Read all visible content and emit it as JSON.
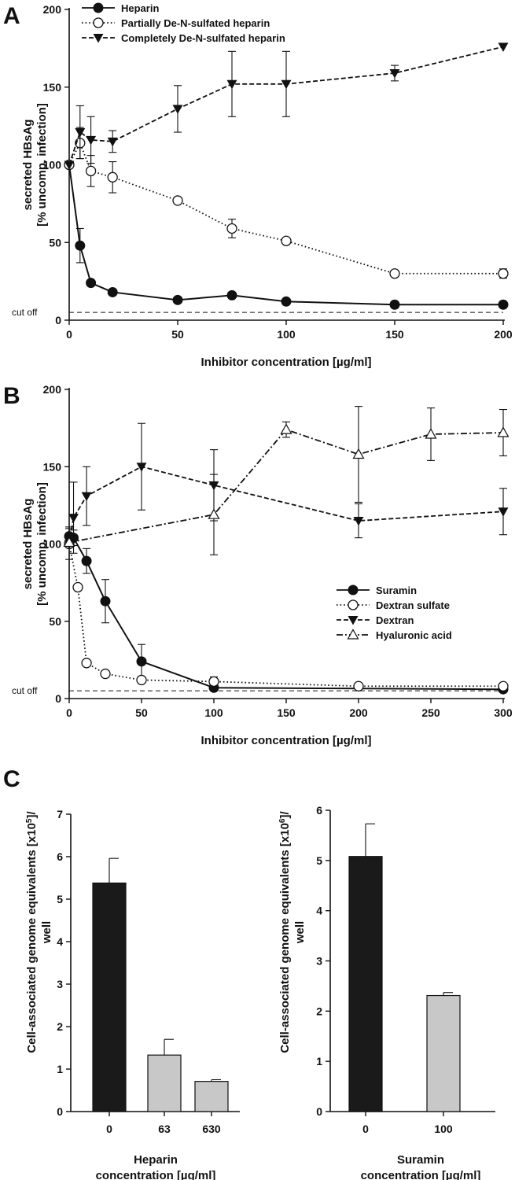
{
  "panels": [
    {
      "letter": "A"
    },
    {
      "letter": "B"
    },
    {
      "letter": "C"
    }
  ],
  "chart_data": [
    {
      "panel": "A",
      "type": "line",
      "xlabel": "Inhibitor concentration [µg/ml]",
      "ylabel": [
        "secreted HBsAg",
        "[% uncomp. infection]"
      ],
      "xlim": [
        0,
        200
      ],
      "ylim": [
        0,
        200
      ],
      "xticks": [
        0,
        50,
        100,
        150,
        200
      ],
      "yticks": [
        0,
        50,
        100,
        150,
        200
      ],
      "cutoff": {
        "label": "cut off",
        "value": 5
      },
      "legend_position": "top-left",
      "series": [
        {
          "name": "Heparin",
          "marker": "filled-circle",
          "line": "solid",
          "x": [
            0,
            5,
            10,
            20,
            50,
            75,
            100,
            150,
            200
          ],
          "y": [
            100,
            48,
            24,
            18,
            13,
            16,
            12,
            10,
            10
          ],
          "err": [
            0,
            11,
            0,
            0,
            0,
            0,
            0,
            0,
            0
          ]
        },
        {
          "name": "Partially De-N-sulfated heparin",
          "marker": "open-circle",
          "line": "dotted",
          "x": [
            0,
            5,
            10,
            20,
            50,
            75,
            100,
            150,
            200
          ],
          "y": [
            100,
            114,
            96,
            92,
            77,
            59,
            51,
            30,
            30
          ],
          "err": [
            0,
            10,
            10,
            10,
            0,
            6,
            0,
            0,
            3
          ]
        },
        {
          "name": "Completely De-N-sulfated heparin",
          "marker": "filled-triangle-down",
          "line": "dashed",
          "x": [
            0,
            5,
            10,
            20,
            50,
            75,
            100,
            150,
            200
          ],
          "y": [
            100,
            121,
            116,
            115,
            136,
            152,
            152,
            159,
            176
          ],
          "err": [
            0,
            17,
            15,
            7,
            15,
            21,
            21,
            5,
            0
          ]
        }
      ]
    },
    {
      "panel": "B",
      "type": "line",
      "xlabel": "Inhibitor concentration [µg/ml]",
      "ylabel": [
        "secreted HBsAg",
        "[% uncomp. infection]"
      ],
      "xlim": [
        0,
        300
      ],
      "ylim": [
        0,
        200
      ],
      "xticks": [
        0,
        50,
        100,
        150,
        200,
        250,
        300
      ],
      "yticks": [
        0,
        50,
        100,
        150,
        200
      ],
      "cutoff": {
        "label": "cut off",
        "value": 5
      },
      "legend_position": "center-right",
      "series": [
        {
          "name": "Suramin",
          "marker": "filled-circle",
          "line": "solid",
          "x": [
            0,
            3,
            12,
            25,
            50,
            100,
            300
          ],
          "y": [
            105,
            104,
            89,
            63,
            24,
            7,
            6
          ],
          "err": [
            6,
            5,
            8,
            14,
            11,
            0,
            0
          ]
        },
        {
          "name": "Dextran sulfate",
          "marker": "open-circle",
          "line": "dotted",
          "x": [
            0,
            6,
            12,
            25,
            50,
            100,
            200,
            300
          ],
          "y": [
            100,
            72,
            23,
            16,
            12,
            11,
            8,
            8
          ],
          "err": [
            10,
            0,
            0,
            0,
            0,
            3,
            0,
            0
          ]
        },
        {
          "name": "Dextran",
          "marker": "filled-triangle-down",
          "line": "dashed",
          "x": [
            0,
            3,
            12,
            50,
            100,
            200,
            300
          ],
          "y": [
            100,
            117,
            131,
            150,
            138,
            115,
            121
          ],
          "err": [
            0,
            23,
            19,
            28,
            23,
            11,
            15
          ]
        },
        {
          "name": "Hyaluronic acid",
          "marker": "open-triangle-up",
          "line": "dash-dot",
          "x": [
            0,
            100,
            150,
            200,
            250,
            300
          ],
          "y": [
            101,
            119,
            174,
            158,
            171,
            172
          ],
          "err": [
            0,
            26,
            5,
            31,
            17,
            15
          ]
        }
      ]
    },
    {
      "panel": "C-left",
      "type": "bar",
      "ylabel": [
        "Cell-associated genome equivalents [x10",
        "5",
        "]/",
        "well"
      ],
      "xlabel": [
        "Heparin",
        "concentration [µg/ml]"
      ],
      "ylim": [
        0,
        7
      ],
      "yticks": [
        0,
        1,
        2,
        3,
        4,
        5,
        6,
        7
      ],
      "categories": [
        "0",
        "63",
        "630"
      ],
      "values": [
        5.38,
        1.33,
        0.71
      ],
      "err": [
        0.58,
        0.37,
        0.04
      ],
      "colors": [
        "#1a1a1a",
        "#c8c8c8",
        "#c8c8c8"
      ]
    },
    {
      "panel": "C-right",
      "type": "bar",
      "ylabel": [
        "Cell-associated genome equivalents [x10",
        "6",
        "]/",
        "well"
      ],
      "xlabel": [
        "Suramin",
        "concentration [µg/ml]"
      ],
      "ylim": [
        0,
        6
      ],
      "yticks": [
        0,
        1,
        2,
        3,
        4,
        5,
        6
      ],
      "categories": [
        "0",
        "100"
      ],
      "values": [
        5.08,
        2.31
      ],
      "err": [
        0.65,
        0.06
      ],
      "colors": [
        "#1a1a1a",
        "#c8c8c8"
      ]
    }
  ]
}
